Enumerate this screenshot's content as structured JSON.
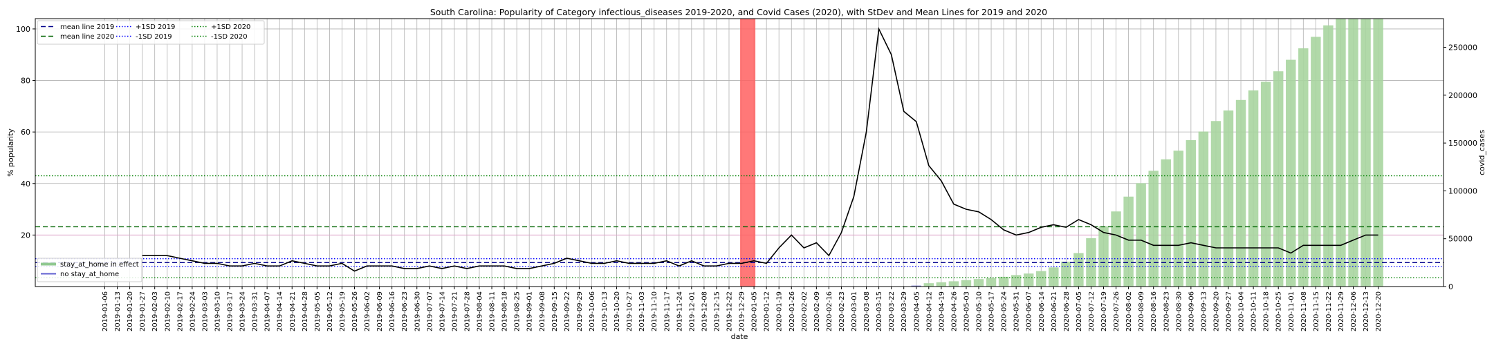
{
  "chart_data": {
    "type": "bar+line",
    "title": "South Carolina: Popularity of Category infectious_diseases 2019-2020, and Covid Cases (2020), with StDev and Mean Lines for 2019 and 2020",
    "xlabel": "date",
    "ylabel_left": "% popularity",
    "ylabel_right": "covid_cases",
    "ylim_left": [
      0,
      104
    ],
    "ylim_right": [
      0,
      280000
    ],
    "yticks_left": [
      20,
      40,
      60,
      80,
      100
    ],
    "yticks_right": [
      0,
      50000,
      100000,
      150000,
      200000,
      250000
    ],
    "yticklabels_right": [
      "0",
      "50000",
      "100000",
      "150000",
      "200000",
      "250000"
    ],
    "grid": true,
    "x_dates": [
      "2019-01-06",
      "2019-01-13",
      "2019-01-20",
      "2019-01-27",
      "2019-02-03",
      "2019-02-10",
      "2019-02-17",
      "2019-02-24",
      "2019-03-03",
      "2019-03-10",
      "2019-03-17",
      "2019-03-24",
      "2019-03-31",
      "2019-04-07",
      "2019-04-14",
      "2019-04-21",
      "2019-04-28",
      "2019-05-05",
      "2019-05-12",
      "2019-05-19",
      "2019-05-26",
      "2019-06-02",
      "2019-06-09",
      "2019-06-16",
      "2019-06-23",
      "2019-06-30",
      "2019-07-07",
      "2019-07-14",
      "2019-07-21",
      "2019-07-28",
      "2019-08-04",
      "2019-08-11",
      "2019-08-18",
      "2019-08-25",
      "2019-09-01",
      "2019-09-08",
      "2019-09-15",
      "2019-09-22",
      "2019-09-29",
      "2019-10-06",
      "2019-10-13",
      "2019-10-20",
      "2019-10-27",
      "2019-11-03",
      "2019-11-10",
      "2019-11-17",
      "2019-11-24",
      "2019-12-01",
      "2019-12-08",
      "2019-12-15",
      "2019-12-22",
      "2019-12-29",
      "2020-01-05",
      "2020-01-12",
      "2020-01-19",
      "2020-01-26",
      "2020-02-02",
      "2020-02-09",
      "2020-02-16",
      "2020-02-23",
      "2020-03-01",
      "2020-03-08",
      "2020-03-15",
      "2020-03-22",
      "2020-03-29",
      "2020-04-05",
      "2020-04-12",
      "2020-04-19",
      "2020-04-26",
      "2020-05-03",
      "2020-05-10",
      "2020-05-17",
      "2020-05-24",
      "2020-05-31",
      "2020-06-07",
      "2020-06-14",
      "2020-06-21",
      "2020-06-28",
      "2020-07-05",
      "2020-07-12",
      "2020-07-19",
      "2020-07-26",
      "2020-08-02",
      "2020-08-09",
      "2020-08-16",
      "2020-08-23",
      "2020-08-30",
      "2020-09-06",
      "2020-09-13",
      "2020-09-20",
      "2020-09-27",
      "2020-10-04",
      "2020-10-11",
      "2020-10-18",
      "2020-10-25",
      "2020-11-01",
      "2020-11-08",
      "2020-11-15",
      "2020-11-22",
      "2020-11-29",
      "2020-12-06",
      "2020-12-13",
      "2020-12-20"
    ],
    "popularity_line": {
      "name": "popularity",
      "start_index": 3,
      "values": [
        12,
        12,
        12,
        11,
        10,
        9,
        9,
        8,
        8,
        9,
        8,
        8,
        10,
        9,
        8,
        8,
        9,
        6,
        8,
        8,
        8,
        7,
        7,
        8,
        7,
        8,
        7,
        8,
        8,
        8,
        7,
        7,
        8,
        9,
        11,
        10,
        9,
        9,
        10,
        9,
        9,
        9,
        10,
        8,
        10,
        8,
        8,
        9,
        9,
        10,
        9,
        15,
        20,
        15,
        17,
        12,
        21,
        35,
        60,
        100,
        90,
        68,
        64,
        47,
        41,
        32,
        30,
        29,
        26,
        22,
        20,
        21,
        23,
        24,
        23,
        26,
        24,
        21,
        20,
        18,
        18,
        16,
        16,
        16,
        17,
        16,
        15,
        15,
        15,
        15,
        15,
        15,
        13,
        16,
        16,
        16,
        16,
        18,
        20,
        20
      ]
    },
    "covid_bars": {
      "name": "stay_at_home in effect",
      "start_index": 65,
      "values": [
        1000,
        3500,
        4500,
        5500,
        6800,
        7800,
        8800,
        10200,
        12000,
        13600,
        16200,
        20000,
        26000,
        35000,
        50500,
        63000,
        78500,
        94000,
        108000,
        121000,
        133000,
        142000,
        153000,
        162000,
        173000,
        184000,
        195000,
        205000,
        214000,
        225000,
        237000,
        249000,
        261000,
        273000,
        288000,
        302000,
        312000,
        328000
      ]
    },
    "covid_bars_marker_color": "#7070d0",
    "covid_bars_marker_index": 65,
    "highlight_span": {
      "from": "2019-12-29",
      "to": "2020-01-05",
      "color": "#ff6060"
    },
    "reference_lines": [
      {
        "name": "mean line 2019",
        "value": 9.3,
        "color": "#00008b",
        "style": "dashed"
      },
      {
        "name": "mean line 2020",
        "value": 23.2,
        "color": "#006400",
        "style": "dashed"
      },
      {
        "name": "+1SD 2019",
        "value": 10.8,
        "color": "#0000ff",
        "style": "dotted"
      },
      {
        "name": "-1SD 2019",
        "value": 7.8,
        "color": "#0000ff",
        "style": "dotted"
      },
      {
        "name": "+1SD 2020",
        "value": 43.0,
        "color": "#008000",
        "style": "dotted"
      },
      {
        "name": "-1SD 2020",
        "value": 3.4,
        "color": "#008000",
        "style": "dotted"
      }
    ],
    "legend_top": [
      {
        "label": "mean line 2019",
        "color": "#00008b",
        "style": "dashed"
      },
      {
        "label": "mean line 2020",
        "color": "#006400",
        "style": "dashed"
      },
      {
        "label": "+1SD 2019",
        "color": "#0000ff",
        "style": "dotted"
      },
      {
        "label": "-1SD 2019",
        "color": "#0000ff",
        "style": "dotted"
      },
      {
        "label": "+1SD 2020",
        "color": "#008000",
        "style": "dotted"
      },
      {
        "label": "-1SD 2020",
        "color": "#008000",
        "style": "dotted"
      }
    ],
    "legend_bottom": [
      {
        "label": "stay_at_home in effect",
        "color": "#90c890",
        "style": "solid"
      },
      {
        "label": "no stay_at_home",
        "color": "#6060d0",
        "style": "solid"
      }
    ],
    "colors": {
      "line": "#000000",
      "bars": "#a8d5a0",
      "grid": "#b0b0b0",
      "pink_line": "#e0a0c8"
    }
  }
}
